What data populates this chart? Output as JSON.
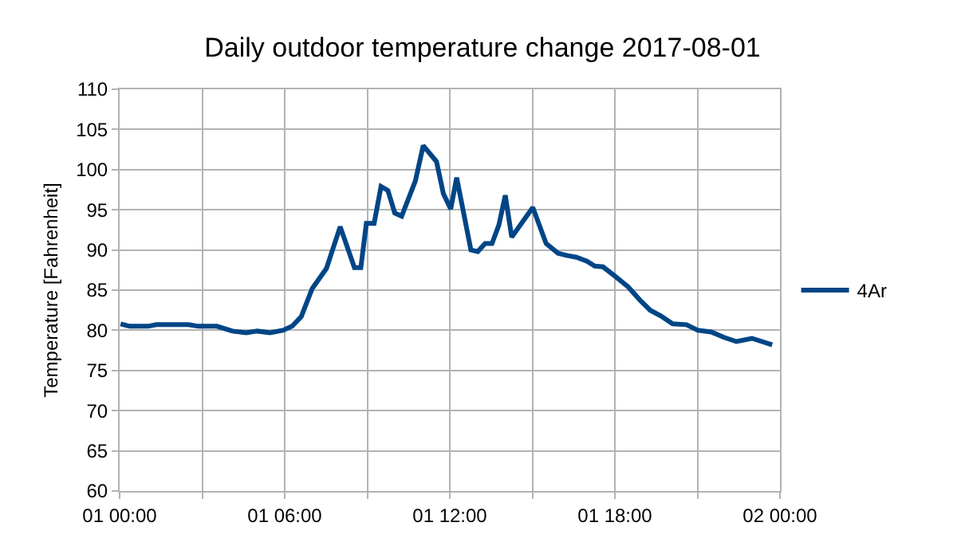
{
  "chart_data": {
    "type": "line",
    "title": "Daily outdoor temperature change 2017-08-01",
    "ylabel": "Temperature [Fahrenheit]",
    "x": [
      "2017-08-01T00:02",
      "2017-08-01T00:22",
      "2017-08-01T01:02",
      "2017-08-01T01:20",
      "2017-08-01T01:48",
      "2017-08-01T02:30",
      "2017-08-01T02:52",
      "2017-08-01T03:32",
      "2017-08-01T04:06",
      "2017-08-01T04:36",
      "2017-08-01T05:00",
      "2017-08-01T05:28",
      "2017-08-01T05:56",
      "2017-08-01T06:16",
      "2017-08-01T06:36",
      "2017-08-01T07:00",
      "2017-08-01T07:31",
      "2017-08-01T08:01",
      "2017-08-01T08:32",
      "2017-08-01T08:46",
      "2017-08-01T08:58",
      "2017-08-01T09:15",
      "2017-08-01T09:30",
      "2017-08-01T09:45",
      "2017-08-01T10:00",
      "2017-08-01T10:15",
      "2017-08-01T10:45",
      "2017-08-01T11:02",
      "2017-08-01T11:31",
      "2017-08-01T11:46",
      "2017-08-01T12:02",
      "2017-08-01T12:15",
      "2017-08-01T12:46",
      "2017-08-01T13:01",
      "2017-08-01T13:17",
      "2017-08-01T13:32",
      "2017-08-01T13:47",
      "2017-08-01T14:01",
      "2017-08-01T14:15",
      "2017-08-01T15:01",
      "2017-08-01T15:30",
      "2017-08-01T15:56",
      "2017-08-01T16:16",
      "2017-08-01T16:36",
      "2017-08-01T16:59",
      "2017-08-01T17:16",
      "2017-08-01T17:34",
      "2017-08-01T17:59",
      "2017-08-01T18:29",
      "2017-08-01T18:54",
      "2017-08-01T19:17",
      "2017-08-01T19:40",
      "2017-08-01T20:06",
      "2017-08-01T20:36",
      "2017-08-01T21:01",
      "2017-08-01T21:30",
      "2017-08-01T21:59",
      "2017-08-01T22:25",
      "2017-08-01T22:59",
      "2017-08-01T23:43"
    ],
    "series": [
      {
        "name": "4Ar",
        "color": "#004586",
        "values": [
          80.8,
          80.5,
          80.5,
          80.7,
          80.7,
          80.7,
          80.5,
          80.5,
          79.9,
          79.7,
          79.9,
          79.7,
          80,
          80.5,
          81.7,
          85.2,
          87.7,
          92.9,
          87.8,
          87.8,
          93.3,
          93.3,
          97.9,
          97.4,
          94.6,
          94.2,
          98.6,
          103,
          101,
          97,
          95.1,
          99,
          90,
          89.8,
          90.8,
          90.8,
          93.1,
          96.8,
          91.6,
          95.3,
          90.8,
          89.6,
          89.3,
          89.1,
          88.6,
          88,
          87.9,
          86.8,
          85.4,
          83.8,
          82.5,
          81.8,
          80.8,
          80.7,
          80,
          79.8,
          79.1,
          78.6,
          79,
          78.2
        ]
      }
    ],
    "xlim": [
      "2017-08-01T00:00",
      "2017-08-02T00:00"
    ],
    "xticks": [
      {
        "value": "2017-08-01T00:00",
        "label": "01 00:00"
      },
      {
        "value": "2017-08-01T03:00",
        "label": null
      },
      {
        "value": "2017-08-01T06:00",
        "label": "01 06:00"
      },
      {
        "value": "2017-08-01T09:00",
        "label": null
      },
      {
        "value": "2017-08-01T12:00",
        "label": "01 12:00"
      },
      {
        "value": "2017-08-01T15:00",
        "label": null
      },
      {
        "value": "2017-08-01T18:00",
        "label": "01 18:00"
      },
      {
        "value": "2017-08-01T21:00",
        "label": null
      },
      {
        "value": "2017-08-02T00:00",
        "label": "02 00:00"
      }
    ],
    "ylim": [
      60,
      110
    ],
    "yticks": [
      60,
      65,
      70,
      75,
      80,
      85,
      90,
      95,
      100,
      105,
      110
    ],
    "grid": true,
    "legend": "right",
    "marker": "none",
    "line_style": "solid"
  }
}
